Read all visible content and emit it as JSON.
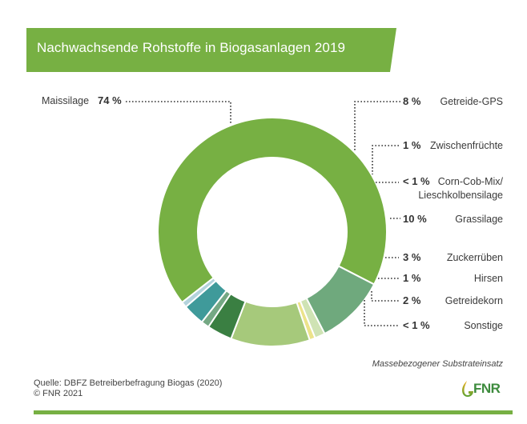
{
  "header": {
    "title": "Nachwachsende Rohstoffe in Biogasanlagen 2019"
  },
  "chart_data": {
    "type": "pie",
    "variant": "donut",
    "title": "Nachwachsende Rohstoffe in Biogasanlagen 2019",
    "subtitle": "Massebezogener Substrateinsatz",
    "slices": [
      {
        "name": "Maissilage",
        "value": 74,
        "label": "74 %",
        "color": "#77b043"
      },
      {
        "name": "Getreide-GPS",
        "value": 8,
        "label": "8 %",
        "color": "#6fa97d"
      },
      {
        "name": "Zwischenfrüchte",
        "value": 1,
        "label": "1 %",
        "color": "#cfe3b4"
      },
      {
        "name": "Corn-Cob-Mix/ Lieschkolbensilage",
        "value": 0.5,
        "label": "< 1 %",
        "color": "#ece38a"
      },
      {
        "name": "Grassilage",
        "value": 10,
        "label": "10 %",
        "color": "#a6c97b"
      },
      {
        "name": "Zuckerrüben",
        "value": 3,
        "label": "3 %",
        "color": "#3a7f42"
      },
      {
        "name": "Hirsen",
        "value": 1,
        "label": "1 %",
        "color": "#74a884"
      },
      {
        "name": "Getreidekorn",
        "value": 2,
        "label": "2 %",
        "color": "#3f9a9a"
      },
      {
        "name": "Sonstige",
        "value": 0.5,
        "label": "< 1 %",
        "color": "#b3d3dc"
      }
    ],
    "legend": "callout-labels"
  },
  "footer": {
    "note": "Massebezogener Substrateinsatz",
    "source_line1": "Quelle: DBFZ Betreiberbefragung  Biogas (2020)",
    "source_line2": "© FNR 2021",
    "logo_text": "FNR"
  },
  "colors": {
    "brand_green": "#77b043",
    "text": "#3a3a3a"
  }
}
